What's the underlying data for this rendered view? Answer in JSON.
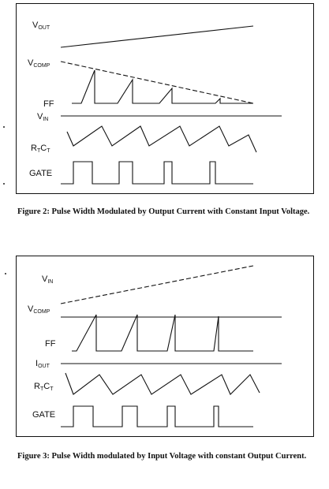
{
  "figure2": {
    "labels": {
      "vout_main": "V",
      "vout_sub": "OUT",
      "vcomp_main": "V",
      "vcomp_sub": "COMP",
      "ff": "FF",
      "vin_main": "V",
      "vin_sub": "IN",
      "rtct_r": "R",
      "rtct_rsub": "T",
      "rtct_c": "C",
      "rtct_csub": "T",
      "gate": "GATE"
    },
    "caption": "Figure 2: Pulse Width Modulated by Output Current with Constant Input Voltage."
  },
  "figure3": {
    "labels": {
      "vin_main": "V",
      "vin_sub": "IN",
      "vcomp_main": "V",
      "vcomp_sub": "COMP",
      "ff": "FF",
      "iout_main": "I",
      "iout_sub": "OUT",
      "rtct_r": "R",
      "rtct_rsub": "T",
      "rtct_c": "C",
      "rtct_csub": "T",
      "gate": "GATE"
    },
    "caption": "Figure 3: Pulse Width modulated by Input Voltage with constant Output Current."
  }
}
